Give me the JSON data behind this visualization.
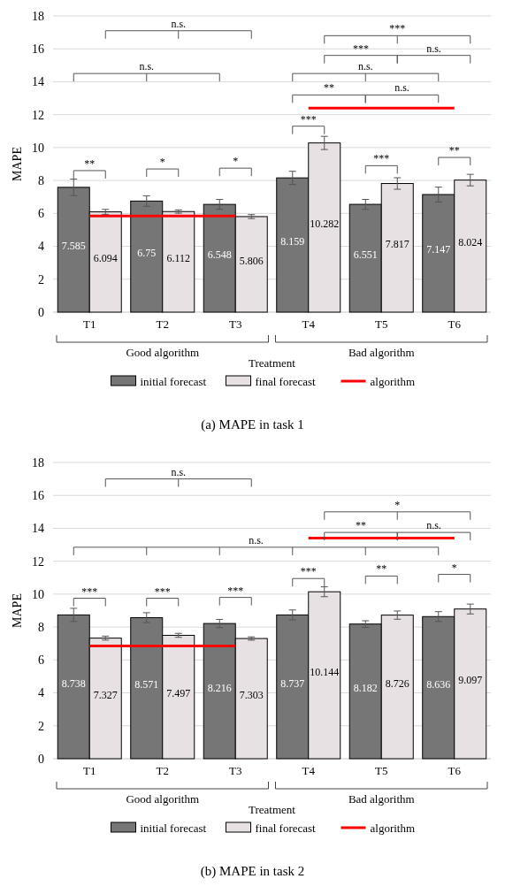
{
  "chart_data": [
    {
      "type": "bar",
      "title": "(a) MAPE in task 1",
      "xlabel": "Treatment",
      "ylabel": "MAPE",
      "categories": [
        "T1",
        "T2",
        "T3",
        "T4",
        "T5",
        "T6"
      ],
      "series": [
        {
          "name": "initial forecast",
          "color": "#767676",
          "values": [
            7.585,
            6.75,
            6.548,
            8.159,
            6.551,
            7.147
          ],
          "errors": [
            0.5,
            0.32,
            0.3,
            0.4,
            0.3,
            0.45
          ],
          "value_labels": [
            "7.585",
            "6.75",
            "6.548",
            "8.159",
            "6.551",
            "7.147"
          ]
        },
        {
          "name": "final forecast",
          "color": "#e7e1e4",
          "values": [
            6.094,
            6.112,
            5.806,
            10.282,
            7.817,
            8.024
          ],
          "errors": [
            0.15,
            0.1,
            0.12,
            0.4,
            0.35,
            0.35
          ],
          "value_labels": [
            "6.094",
            "6.112",
            "5.806",
            "10.282",
            "7.817",
            "8.024"
          ]
        },
        {
          "name": "algorithm",
          "type": "line",
          "color": "#ff0000",
          "x": [
            "T1",
            "T2",
            "T3",
            null,
            "T4",
            "T5",
            "T6"
          ],
          "values": [
            5.85,
            5.85,
            5.85,
            null,
            12.4,
            12.4,
            12.4
          ]
        }
      ],
      "ylim": [
        0,
        18
      ],
      "yticks": [
        0,
        2,
        4,
        6,
        8,
        10,
        12,
        14,
        16,
        18
      ],
      "grid": "y",
      "legend": "bottom",
      "annotations": [
        "Good algorithm",
        "Bad algorithm",
        "**",
        "*",
        "*",
        "***",
        "***",
        "**",
        "**",
        "n.s.",
        "n.s.",
        "***",
        "n.s.",
        "***",
        "n.s.",
        "n.s."
      ]
    },
    {
      "type": "bar",
      "title": "(b) MAPE in task 2",
      "xlabel": "Treatment",
      "ylabel": "MAPE",
      "categories": [
        "T1",
        "T2",
        "T3",
        "T4",
        "T5",
        "T6"
      ],
      "series": [
        {
          "name": "initial forecast",
          "color": "#767676",
          "values": [
            8.738,
            8.571,
            8.216,
            8.737,
            8.182,
            8.636
          ],
          "errors": [
            0.4,
            0.3,
            0.25,
            0.3,
            0.2,
            0.3
          ],
          "value_labels": [
            "8.738",
            "8.571",
            "8.216",
            "8.737",
            "8.182",
            "8.636"
          ]
        },
        {
          "name": "final forecast",
          "color": "#e7e1e4",
          "values": [
            7.327,
            7.497,
            7.303,
            10.144,
            8.726,
            9.097
          ],
          "errors": [
            0.12,
            0.12,
            0.1,
            0.3,
            0.25,
            0.3
          ],
          "value_labels": [
            "7.327",
            "7.497",
            "7.303",
            "10.144",
            "8.726",
            "9.097"
          ]
        },
        {
          "name": "algorithm",
          "type": "line",
          "color": "#ff0000",
          "x": [
            "T1",
            "T2",
            "T3",
            null,
            "T4",
            "T5",
            "T6"
          ],
          "values": [
            6.85,
            6.85,
            6.85,
            null,
            13.4,
            13.4,
            13.4
          ]
        }
      ],
      "ylim": [
        0,
        18
      ],
      "yticks": [
        0,
        2,
        4,
        6,
        8,
        10,
        12,
        14,
        16,
        18
      ],
      "grid": "y",
      "legend": "bottom",
      "annotations": [
        "Good algorithm",
        "Bad algorithm",
        "***",
        "***",
        "***",
        "***",
        "**",
        "*",
        "n.s.",
        "**",
        "n.s.",
        "*",
        "n.s."
      ]
    }
  ]
}
